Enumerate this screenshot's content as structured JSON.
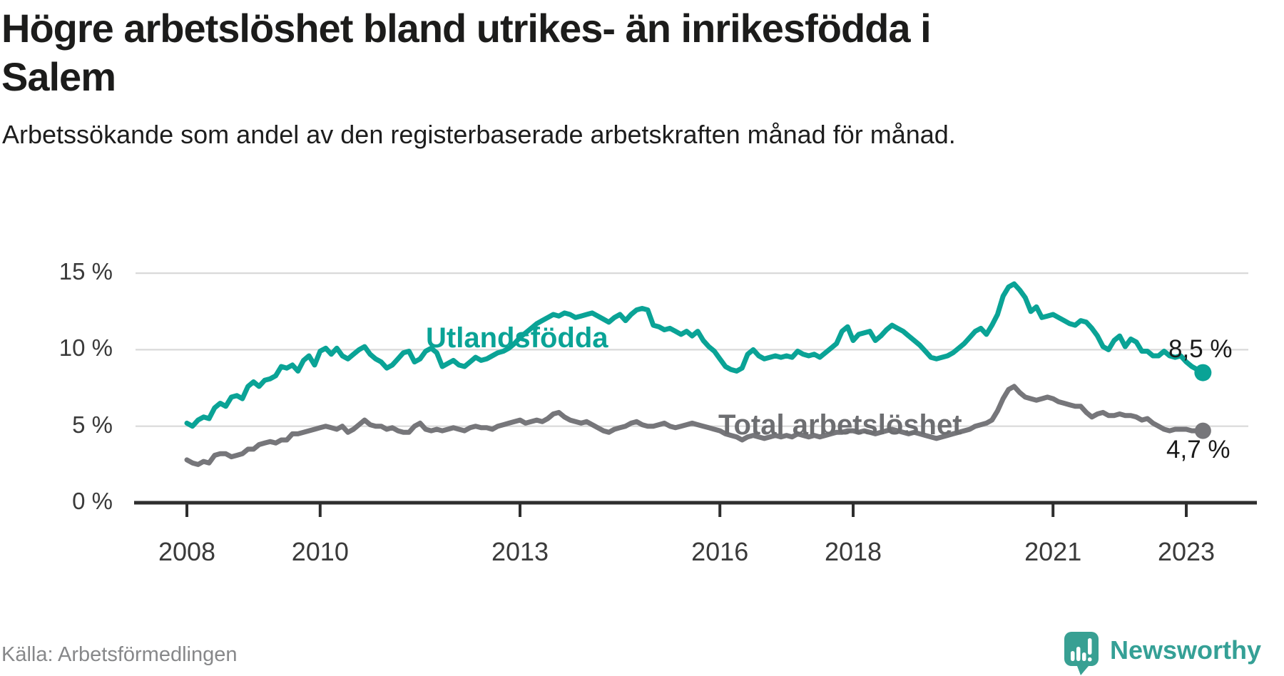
{
  "header": {
    "title": "Högre arbetslöshet bland utrikes- än inrikesfödda i Salem",
    "title_lines": [
      "Högre arbetslöshet bland utrikes- än inrikesfödda i",
      "Salem"
    ],
    "subtitle": "Arbetssökande som andel av den registerbaserade arbetskraften månad för månad."
  },
  "source": {
    "label": "Källa: Arbetsförmedlingen"
  },
  "branding": {
    "name": "Newsworthy",
    "icon_color": "#38a093",
    "text_color": "#35a096"
  },
  "chart_data": {
    "type": "line",
    "unit": "%",
    "x_start": "2008-01",
    "x_end": "2023-04",
    "points_per_year": 12,
    "ylim": [
      0,
      15
    ],
    "grid": "horizontal",
    "colors": {
      "grid": "#d9d9d9",
      "axis": "#2e2e2e",
      "tick_text": "#3a3a3a"
    },
    "y_ticks": [
      {
        "value": 0,
        "label": "0 %"
      },
      {
        "value": 5,
        "label": "5 %"
      },
      {
        "value": 10,
        "label": "10 %"
      },
      {
        "value": 15,
        "label": "15 %"
      }
    ],
    "x_ticks": [
      {
        "year": 2008,
        "label": "2008"
      },
      {
        "year": 2010,
        "label": "2010"
      },
      {
        "year": 2013,
        "label": "2013"
      },
      {
        "year": 2016,
        "label": "2016"
      },
      {
        "year": 2018,
        "label": "2018"
      },
      {
        "year": 2021,
        "label": "2021"
      },
      {
        "year": 2023,
        "label": "2023"
      }
    ],
    "series": [
      {
        "name": "Utlandsfödda",
        "color": "#0aa396",
        "end_value": 8.5,
        "end_label": "8,5 %",
        "values": [
          5.2,
          5.0,
          5.4,
          5.6,
          5.5,
          6.2,
          6.5,
          6.3,
          6.9,
          7.0,
          6.8,
          7.6,
          7.9,
          7.6,
          8.0,
          8.1,
          8.3,
          8.9,
          8.8,
          9.0,
          8.6,
          9.3,
          9.6,
          9.0,
          9.9,
          10.1,
          9.7,
          10.1,
          9.6,
          9.4,
          9.7,
          10.0,
          10.2,
          9.7,
          9.4,
          9.2,
          8.8,
          9.0,
          9.4,
          9.8,
          9.9,
          9.2,
          9.4,
          9.9,
          10.1,
          9.8,
          8.9,
          9.1,
          9.3,
          9.0,
          8.9,
          9.2,
          9.5,
          9.3,
          9.4,
          9.6,
          9.8,
          9.9,
          10.1,
          10.4,
          10.8,
          11.1,
          11.4,
          11.7,
          11.9,
          12.1,
          12.3,
          12.2,
          12.4,
          12.3,
          12.1,
          12.2,
          12.3,
          12.4,
          12.2,
          12.0,
          11.8,
          12.1,
          12.3,
          11.9,
          12.3,
          12.6,
          12.7,
          12.6,
          11.6,
          11.5,
          11.3,
          11.4,
          11.2,
          11.0,
          11.2,
          10.9,
          11.2,
          10.6,
          10.2,
          9.9,
          9.4,
          8.9,
          8.7,
          8.6,
          8.8,
          9.7,
          10.0,
          9.6,
          9.4,
          9.5,
          9.6,
          9.5,
          9.6,
          9.5,
          9.9,
          9.7,
          9.6,
          9.7,
          9.5,
          9.8,
          10.1,
          10.4,
          11.2,
          11.5,
          10.6,
          11.0,
          11.1,
          11.2,
          10.6,
          10.9,
          11.3,
          11.6,
          11.4,
          11.2,
          10.9,
          10.6,
          10.3,
          9.9,
          9.5,
          9.4,
          9.5,
          9.6,
          9.8,
          10.1,
          10.4,
          10.8,
          11.2,
          11.4,
          11.0,
          11.6,
          12.3,
          13.5,
          14.1,
          14.3,
          13.9,
          13.4,
          12.5,
          12.8,
          12.1,
          12.2,
          12.3,
          12.1,
          11.9,
          11.7,
          11.6,
          11.9,
          11.8,
          11.4,
          10.9,
          10.2,
          10.0,
          10.6,
          10.9,
          10.2,
          10.7,
          10.5,
          9.9,
          9.9,
          9.6,
          9.6,
          9.9,
          9.6,
          9.5,
          9.6,
          9.2,
          8.9,
          8.7,
          8.5
        ]
      },
      {
        "name": "Total arbetslöshet",
        "color": "#76767a",
        "end_value": 4.7,
        "end_label": "4,7 %",
        "values": [
          2.8,
          2.6,
          2.5,
          2.7,
          2.6,
          3.1,
          3.2,
          3.2,
          3.0,
          3.1,
          3.2,
          3.5,
          3.5,
          3.8,
          3.9,
          4.0,
          3.9,
          4.1,
          4.1,
          4.5,
          4.5,
          4.6,
          4.7,
          4.8,
          4.9,
          5.0,
          4.9,
          4.8,
          5.0,
          4.6,
          4.8,
          5.1,
          5.4,
          5.1,
          5.0,
          5.0,
          4.8,
          4.9,
          4.7,
          4.6,
          4.6,
          5.0,
          5.2,
          4.8,
          4.7,
          4.8,
          4.7,
          4.8,
          4.9,
          4.8,
          4.7,
          4.9,
          5.0,
          4.9,
          4.9,
          4.8,
          5.0,
          5.1,
          5.2,
          5.3,
          5.4,
          5.2,
          5.3,
          5.4,
          5.3,
          5.5,
          5.8,
          5.9,
          5.6,
          5.4,
          5.3,
          5.2,
          5.3,
          5.1,
          4.9,
          4.7,
          4.6,
          4.8,
          4.9,
          5.0,
          5.2,
          5.3,
          5.1,
          5.0,
          5.0,
          5.1,
          5.2,
          5.0,
          4.9,
          5.0,
          5.1,
          5.2,
          5.1,
          5.0,
          4.9,
          4.8,
          4.7,
          4.5,
          4.4,
          4.3,
          4.1,
          4.3,
          4.4,
          4.3,
          4.2,
          4.3,
          4.4,
          4.3,
          4.4,
          4.3,
          4.5,
          4.4,
          4.3,
          4.4,
          4.3,
          4.4,
          4.5,
          4.6,
          4.6,
          4.7,
          4.7,
          4.6,
          4.7,
          4.6,
          4.5,
          4.6,
          4.7,
          4.8,
          4.7,
          4.6,
          4.5,
          4.6,
          4.5,
          4.4,
          4.3,
          4.2,
          4.3,
          4.4,
          4.5,
          4.6,
          4.7,
          4.8,
          5.0,
          5.1,
          5.2,
          5.4,
          6.0,
          6.8,
          7.4,
          7.6,
          7.2,
          6.9,
          6.8,
          6.7,
          6.8,
          6.9,
          6.8,
          6.6,
          6.5,
          6.4,
          6.3,
          6.3,
          5.9,
          5.6,
          5.8,
          5.9,
          5.7,
          5.7,
          5.8,
          5.7,
          5.7,
          5.6,
          5.4,
          5.5,
          5.2,
          5.0,
          4.8,
          4.7,
          4.8,
          4.8,
          4.8,
          4.7,
          4.7,
          4.7
        ]
      }
    ]
  }
}
